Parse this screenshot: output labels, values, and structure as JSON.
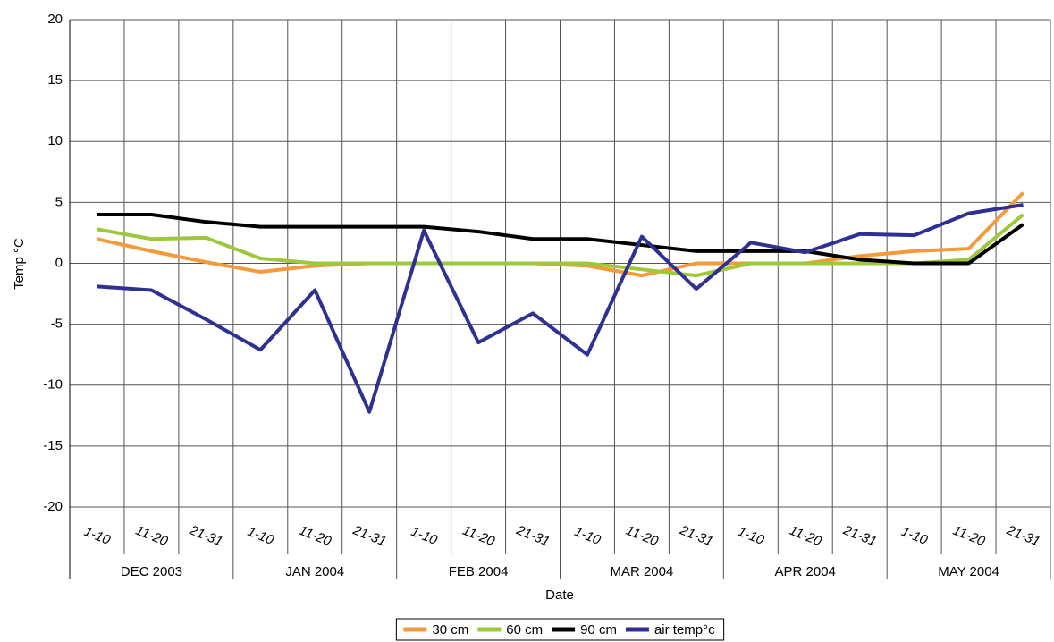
{
  "chart_data": {
    "type": "line",
    "y_label": "Temp °C",
    "x_label": "Date",
    "categories": [
      "1-10",
      "11-20",
      "21-31",
      "1-10",
      "11-20",
      "21-31",
      "1-10",
      "11-20",
      "21-31",
      "1-10",
      "11-20",
      "21-31",
      "1-10",
      "11-20",
      "21-31",
      "1-10",
      "11-20",
      "21-31"
    ],
    "groups": [
      "DEC 2003",
      "JAN 2004",
      "FEB 2004",
      "MAR 2004",
      "APR 2004",
      "MAY 2004"
    ],
    "series": [
      {
        "name": "30 cm",
        "color": "#f39a3a",
        "values": [
          2,
          1,
          0.1,
          -0.7,
          -0.2,
          0,
          0,
          0,
          0,
          -0.2,
          -1,
          0,
          0,
          0,
          0.6,
          1,
          1.2,
          5.8
        ]
      },
      {
        "name": "60 cm",
        "color": "#9dc83c",
        "values": [
          2.8,
          2,
          2.1,
          0.4,
          0,
          0,
          0,
          0,
          0,
          0,
          -0.5,
          -1,
          0,
          0,
          0,
          0,
          0.3,
          4
        ]
      },
      {
        "name": "90 cm",
        "color": "#000000",
        "values": [
          4,
          4,
          3.4,
          3,
          3,
          3,
          3,
          2.6,
          2,
          2,
          1.5,
          1,
          1,
          1,
          0.3,
          0,
          0,
          3.2
        ]
      },
      {
        "name": "air temp°c",
        "color": "#2e3192",
        "values": [
          -1.9,
          -2.2,
          -4.6,
          -7.1,
          -2.2,
          -12.2,
          2.7,
          -6.5,
          -4.1,
          -7.5,
          2.2,
          -2.1,
          1.7,
          0.9,
          2.4,
          2.3,
          4.1,
          4.8
        ]
      }
    ],
    "ylim": [
      -20,
      20
    ],
    "yticks": [
      -20,
      -15,
      -10,
      -5,
      0,
      5,
      10,
      15,
      20
    ],
    "grid": true
  }
}
